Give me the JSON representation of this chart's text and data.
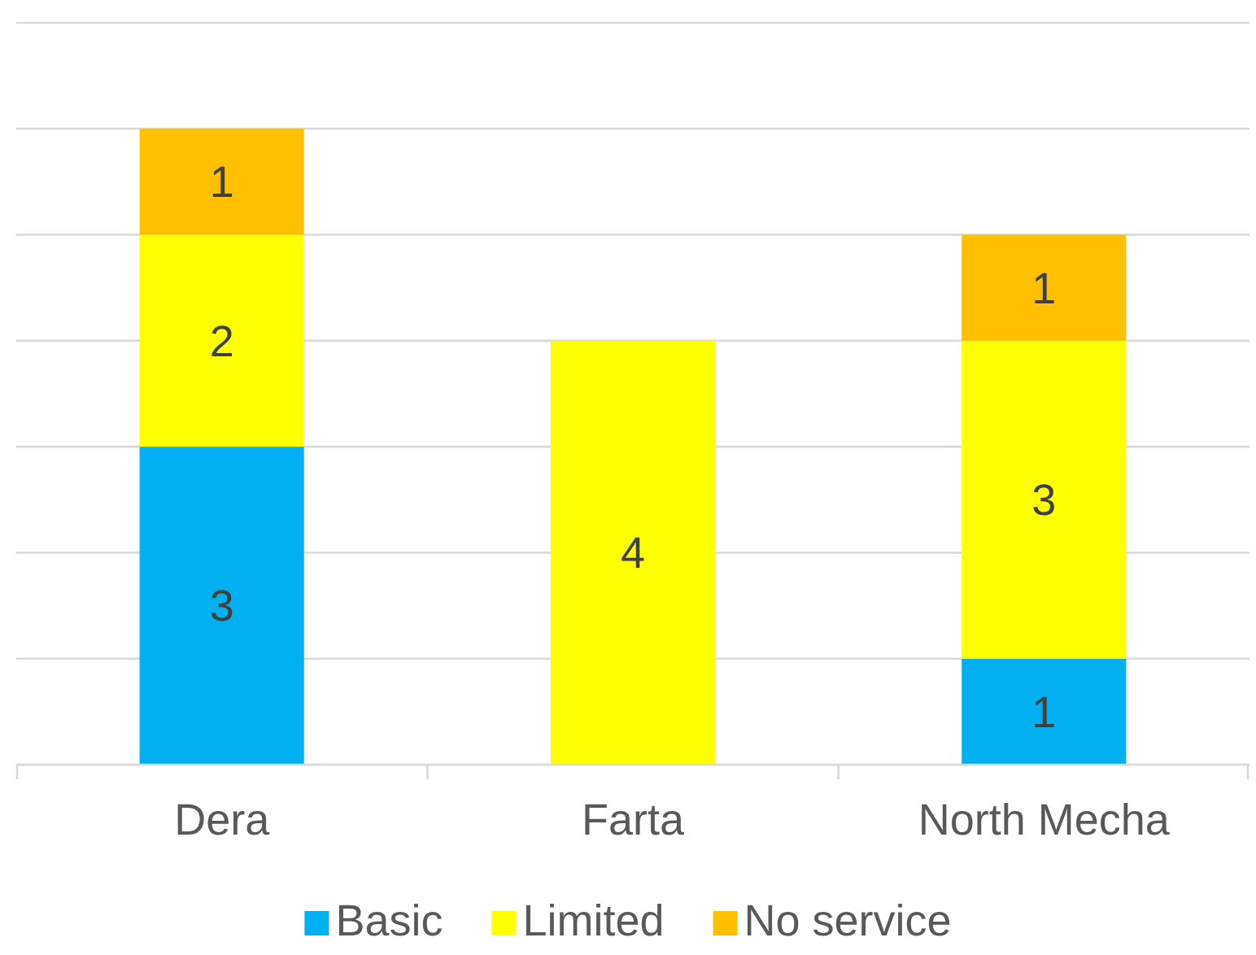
{
  "chart_data": {
    "type": "bar",
    "stacked": true,
    "categories": [
      "Dera",
      "Farta",
      "North Mecha"
    ],
    "series": [
      {
        "name": "Basic",
        "color": "#00b0f0",
        "values": [
          3,
          null,
          1
        ]
      },
      {
        "name": "Limited",
        "color": "#ffff00",
        "values": [
          2,
          4,
          3
        ]
      },
      {
        "name": "No service",
        "color": "#ffc000",
        "values": [
          1,
          null,
          1
        ]
      }
    ],
    "ylim": [
      0,
      7
    ],
    "yticks": [
      {
        "value": 0,
        "label": null
      },
      {
        "value": 1,
        "label": null
      },
      {
        "value": 2,
        "label": null
      },
      {
        "value": 3,
        "label": null
      },
      {
        "value": 4,
        "label": null
      },
      {
        "value": 5,
        "label": null
      },
      {
        "value": 6,
        "label": null
      },
      {
        "value": 7,
        "label": null
      }
    ],
    "grid": "y",
    "tick_labels": "x",
    "data_labels": true,
    "legend": "bottom"
  }
}
